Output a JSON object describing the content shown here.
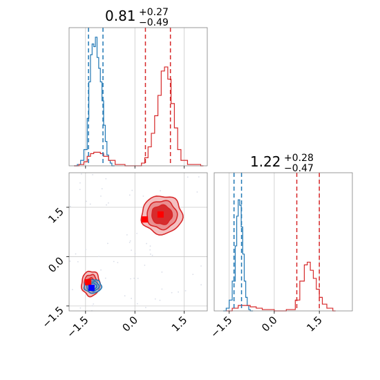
{
  "chart_data": {
    "type": "corner",
    "colors": {
      "blue": "#1f77b4",
      "red": "#d62728",
      "marker_blue": "#0000ff",
      "marker_red": "#ff0000"
    },
    "grid": true,
    "params": [
      {
        "title_value": "0.81",
        "title_plus": "+0.27",
        "title_minus": "−0.49"
      },
      {
        "title_value": "1.22",
        "title_plus": "+0.28",
        "title_minus": "−0.47"
      }
    ],
    "x_ticks": [
      "−1.5",
      "0.0",
      "1.5"
    ],
    "y_ticks": [
      "−1.5",
      "0.0",
      "1.5"
    ],
    "tick_values": [
      -1.5,
      0.0,
      1.5
    ],
    "axis_range_x0": [
      -2.0,
      2.2
    ],
    "axis_range_x1": [
      -2.0,
      2.6
    ],
    "axis_range_y1": [
      -1.65,
      2.55
    ],
    "marginal_x0": {
      "blue": {
        "x": [
          -1.85,
          -1.75,
          -1.65,
          -1.55,
          -1.45,
          -1.4,
          -1.35,
          -1.3,
          -1.25,
          -1.2,
          -1.15,
          -1.1,
          -1.05,
          -1.0,
          -0.95,
          -0.9,
          -0.85,
          -0.8,
          -0.75,
          -0.7
        ],
        "y": [
          0.0,
          0.01,
          0.04,
          0.12,
          0.35,
          0.62,
          0.82,
          0.9,
          0.88,
          0.95,
          0.8,
          0.72,
          0.62,
          0.48,
          0.3,
          0.18,
          0.08,
          0.04,
          0.02,
          0.0
        ]
      },
      "red": {
        "x": [
          -1.85,
          -1.7,
          -1.55,
          -1.45,
          -1.35,
          -1.25,
          -1.15,
          -1.05,
          -0.95,
          -0.8,
          -0.6,
          -0.3,
          0.0,
          0.2,
          0.3,
          0.4,
          0.5,
          0.6,
          0.7,
          0.8,
          0.9,
          1.0,
          1.1,
          1.2,
          1.3,
          1.4,
          1.6,
          2.0
        ],
        "y": [
          0.0,
          0.01,
          0.03,
          0.07,
          0.09,
          0.1,
          0.1,
          0.09,
          0.07,
          0.04,
          0.01,
          0.0,
          0.0,
          0.02,
          0.06,
          0.14,
          0.24,
          0.37,
          0.52,
          0.7,
          0.73,
          0.64,
          0.46,
          0.28,
          0.12,
          0.04,
          0.01,
          0.0
        ]
      },
      "blue_quantiles": [
        -1.41,
        -0.97
      ],
      "red_quantiles": [
        0.32,
        1.08
      ]
    },
    "marginal_x1": {
      "blue": {
        "x": [
          -1.7,
          -1.6,
          -1.5,
          -1.4,
          -1.3,
          -1.25,
          -1.2,
          -1.15,
          -1.1,
          -1.05,
          -1.0,
          -0.95,
          -0.9,
          -0.85,
          -0.8
        ],
        "y": [
          0.0,
          0.02,
          0.08,
          0.22,
          0.48,
          0.7,
          0.82,
          0.78,
          0.62,
          0.42,
          0.22,
          0.1,
          0.04,
          0.01,
          0.0
        ]
      },
      "red": {
        "x": [
          -1.6,
          -1.4,
          -1.2,
          -1.0,
          -0.8,
          -0.6,
          -0.4,
          0.0,
          0.4,
          0.7,
          0.85,
          1.0,
          1.1,
          1.2,
          1.3,
          1.4,
          1.5,
          1.6,
          1.75,
          1.95
        ],
        "y": [
          0.0,
          0.02,
          0.04,
          0.04,
          0.03,
          0.02,
          0.01,
          0.0,
          0.01,
          0.08,
          0.22,
          0.34,
          0.36,
          0.3,
          0.24,
          0.16,
          0.1,
          0.05,
          0.02,
          0.0
        ]
      },
      "blue_quantiles": [
        -1.34,
        -1.09
      ],
      "red_quantiles": [
        0.75,
        1.5
      ]
    },
    "joint": {
      "blue_cluster": {
        "center": [
          -1.28,
          -0.9
        ],
        "spread": [
          0.22,
          0.17
        ]
      },
      "red_cluster_low": {
        "center": [
          -1.34,
          -0.82
        ],
        "spread": [
          0.28,
          0.38
        ]
      },
      "red_cluster_high": {
        "center": [
          0.82,
          1.27
        ],
        "spread": [
          0.62,
          0.58
        ]
      },
      "markers": [
        {
          "color": "red",
          "x": 0.78,
          "y": 1.28
        },
        {
          "color": "red",
          "x": 0.3,
          "y": 1.13
        },
        {
          "color": "red",
          "x": -1.42,
          "y": -0.78
        },
        {
          "color": "blue",
          "x": -1.32,
          "y": -0.95
        }
      ]
    }
  }
}
